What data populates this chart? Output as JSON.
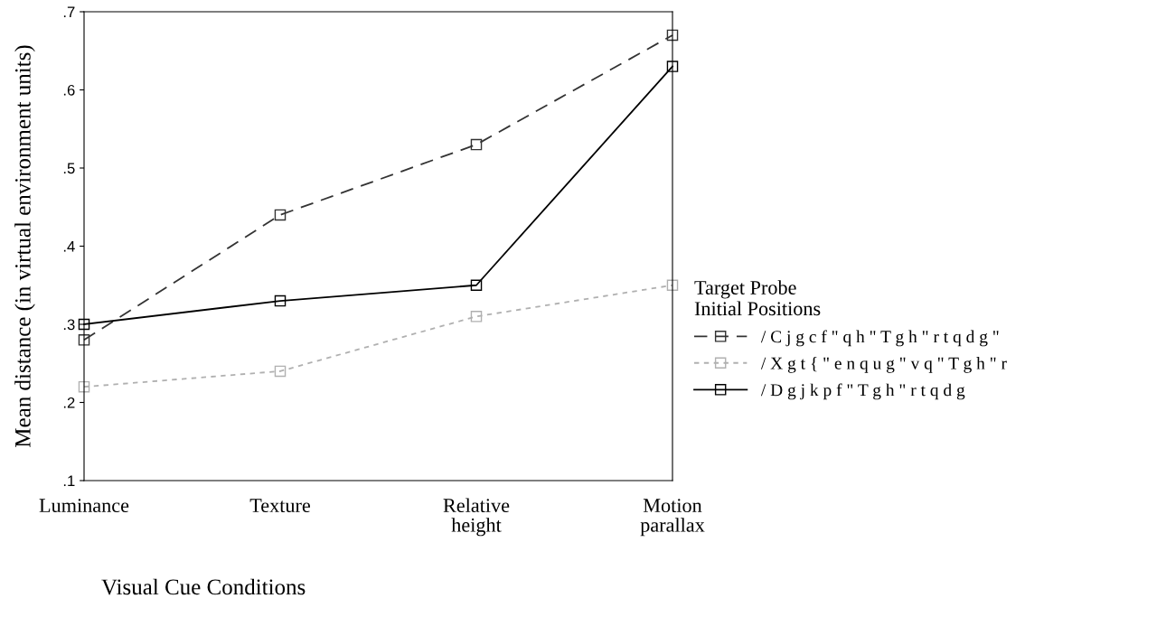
{
  "chart_data": {
    "type": "line",
    "xlabel": "Visual Cue Conditions",
    "ylabel": "Mean distance (in virtual environment units)",
    "categories": [
      "Luminance",
      "Texture",
      "Relative\nheight",
      "Motion\nparallax"
    ],
    "ylim": [
      0.1,
      0.7
    ],
    "yticks": [
      {
        "value": 0.1,
        "label": ".1"
      },
      {
        "value": 0.2,
        "label": ".2"
      },
      {
        "value": 0.3,
        "label": ".3"
      },
      {
        "value": 0.4,
        "label": ".4"
      },
      {
        "value": 0.5,
        "label": ".5"
      },
      {
        "value": 0.6,
        "label": ".6"
      },
      {
        "value": 0.7,
        "label": ".7"
      }
    ],
    "legend_title": "Target Probe\nInitial Positions",
    "legend": "right",
    "marker": "square",
    "grid": false,
    "series": [
      {
        "name": "/ C j g c f \" q h \" T g h \" r t q d g \"",
        "color": "#333333",
        "line_style": "dashed",
        "values": [
          0.28,
          0.44,
          0.53,
          0.67
        ]
      },
      {
        "name": "/ X g t { \" e n q u g \" v q \" T g h \" r",
        "color": "#b0b0b0",
        "line_style": "dotted",
        "values": [
          0.22,
          0.24,
          0.31,
          0.35
        ]
      },
      {
        "name": "/ D g j k p f \" T g h \" r t q d g",
        "color": "#000000",
        "line_style": "solid",
        "values": [
          0.3,
          0.33,
          0.35,
          0.63
        ]
      }
    ]
  }
}
